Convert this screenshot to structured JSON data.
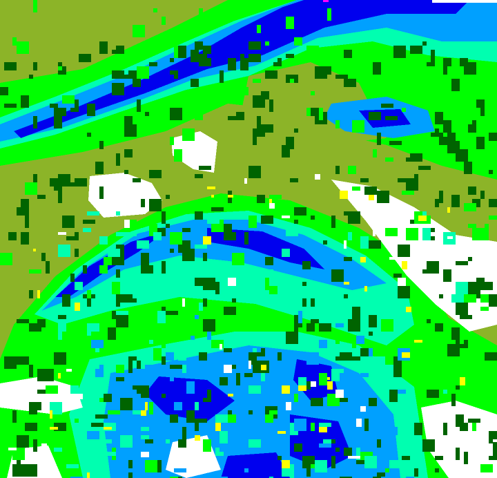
{
  "image": {
    "kind": "classified raster land-cover image",
    "palette": {
      "olive": "#8cb428",
      "green": "#00ff00",
      "dark_green": "#006400",
      "cyan_green": "#00ffb0",
      "light_blue": "#00a0ff",
      "blue": "#0000ee",
      "white": "#ffffff",
      "yellow": "#ffff00",
      "magenta": "#ff00ff"
    }
  }
}
